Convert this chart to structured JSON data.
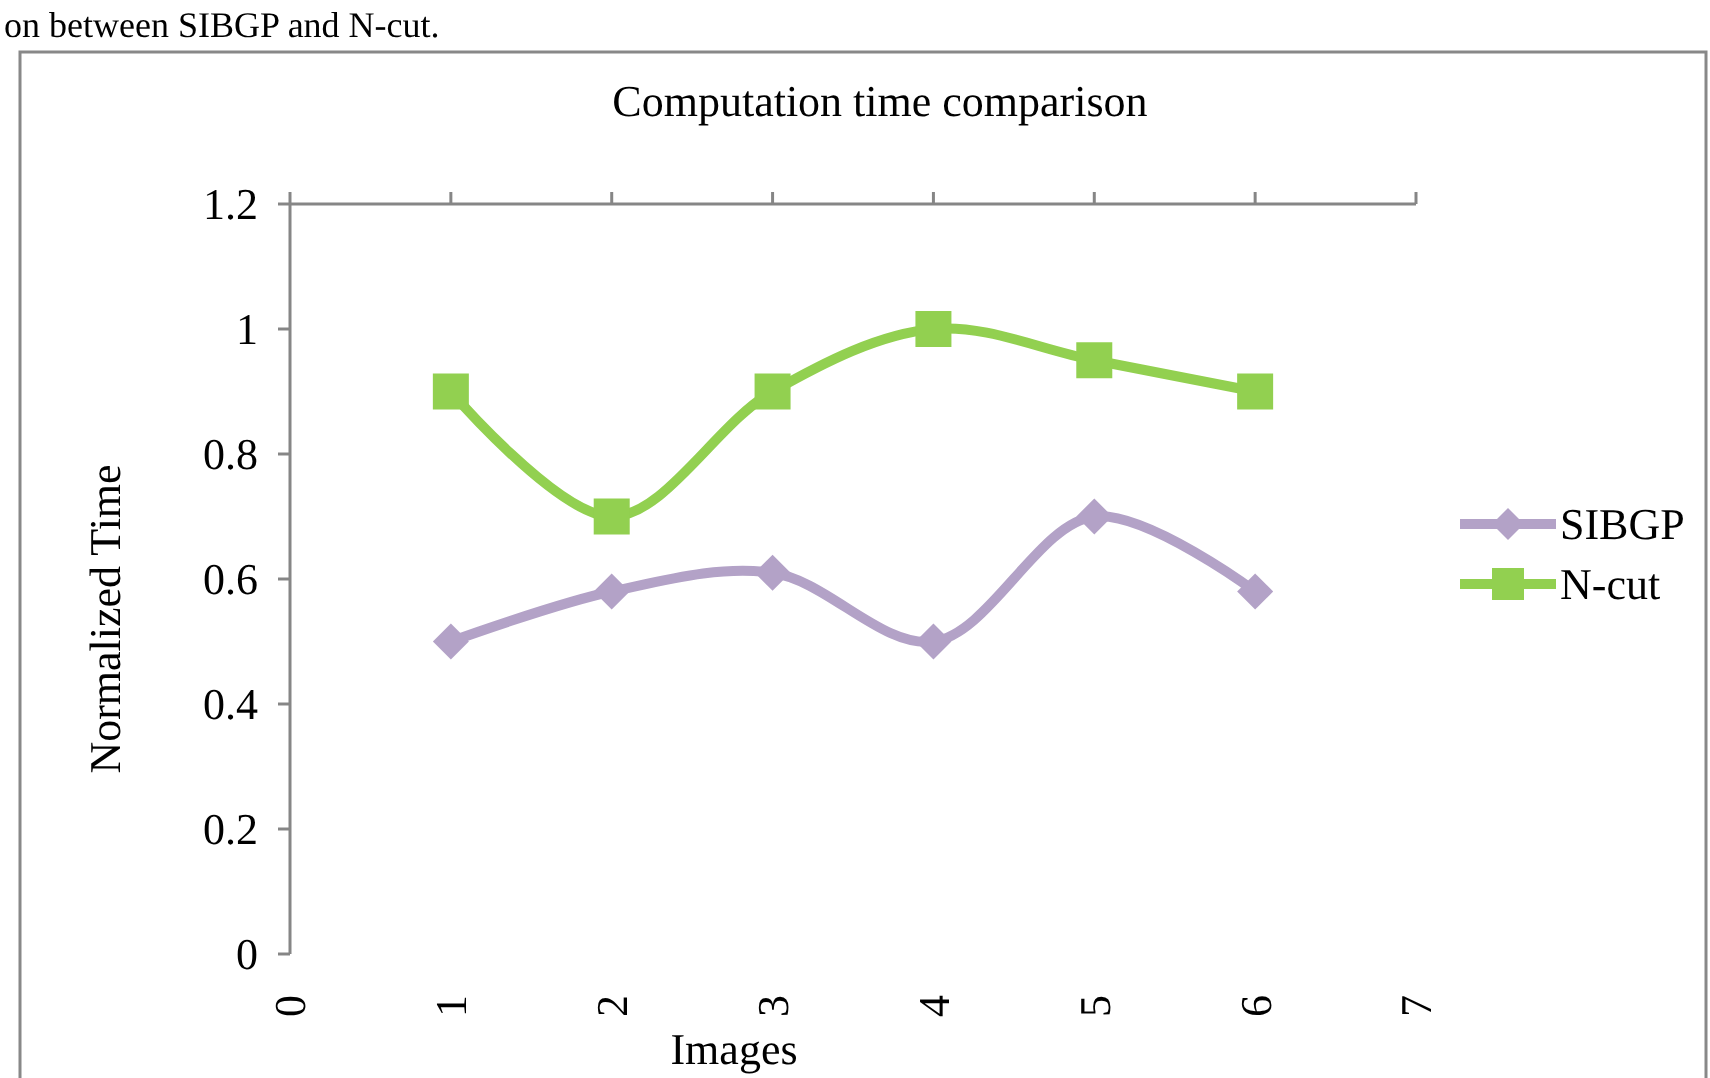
{
  "chart_data": {
    "type": "line",
    "title": "Computation time comparison",
    "xlabel": "Images",
    "ylabel": "Normalized Time",
    "annotations": [
      "on between SIBGP and N-cut."
    ],
    "x": [
      1,
      2,
      3,
      4,
      5,
      6
    ],
    "xlim": [
      0,
      7
    ],
    "xticks": [
      0,
      1,
      2,
      3,
      4,
      5,
      6,
      7
    ],
    "ylim": [
      0,
      1.2
    ],
    "yticks": [
      0,
      0.2,
      0.4,
      0.6,
      0.8,
      1,
      1.2
    ],
    "legend": "right",
    "grid": false,
    "series": [
      {
        "name": "SIBGP",
        "color": "#b3a2c7",
        "marker": "diamond",
        "values": [
          0.5,
          0.58,
          0.61,
          0.5,
          0.7,
          0.58
        ]
      },
      {
        "name": "N-cut",
        "color": "#92d050",
        "marker": "square",
        "values": [
          0.9,
          0.7,
          0.9,
          1.0,
          0.95,
          0.9
        ]
      }
    ]
  }
}
